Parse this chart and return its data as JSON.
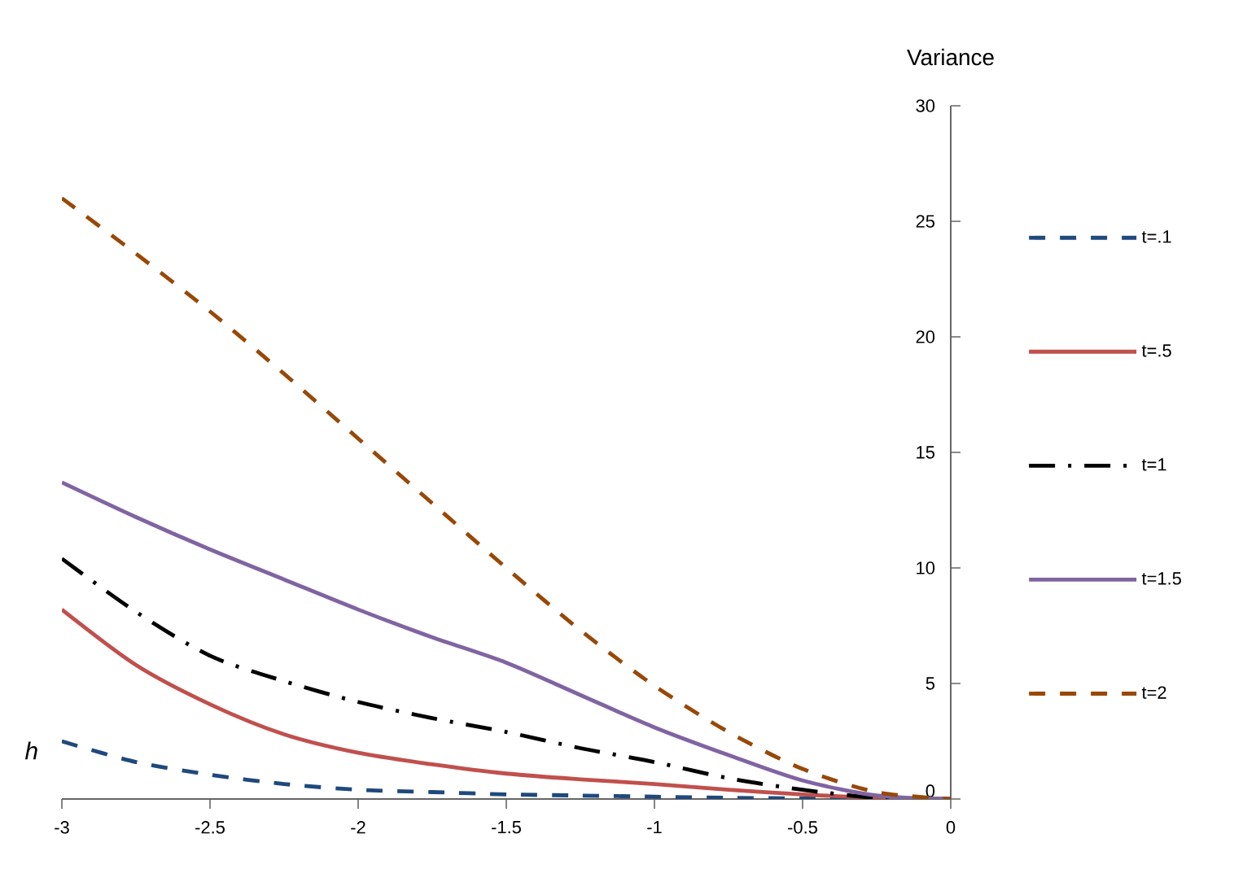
{
  "chart_data": {
    "type": "line",
    "xlabel": "h",
    "ylabel": "Variance",
    "x": [
      -3,
      -2.75,
      -2.5,
      -2.25,
      -2,
      -1.75,
      -1.5,
      -1.25,
      -1,
      -0.75,
      -0.5,
      -0.25,
      0
    ],
    "series": [
      {
        "name": "t=.1",
        "color": "#1f497d",
        "line_style": "dashed",
        "values": [
          2.5,
          1.6,
          1.05,
          0.65,
          0.4,
          0.3,
          0.2,
          0.15,
          0.1,
          0.05,
          0.03,
          0.01,
          0
        ]
      },
      {
        "name": "t=.5",
        "color": "#c0504d",
        "line_style": "solid",
        "values": [
          8.2,
          5.8,
          4.1,
          2.8,
          2.0,
          1.5,
          1.1,
          0.85,
          0.65,
          0.4,
          0.2,
          0.05,
          0
        ]
      },
      {
        "name": "t=1",
        "color": "#000000",
        "line_style": "dashdot",
        "values": [
          10.4,
          8.1,
          6.2,
          5.1,
          4.2,
          3.5,
          2.9,
          2.2,
          1.6,
          0.9,
          0.4,
          0.05,
          0
        ]
      },
      {
        "name": "t=1.5",
        "color": "#8064a2",
        "line_style": "solid",
        "values": [
          13.7,
          12.2,
          10.8,
          9.5,
          8.2,
          7.0,
          5.9,
          4.5,
          3.1,
          1.9,
          0.8,
          0.15,
          0
        ]
      },
      {
        "name": "t=2",
        "color": "#984807",
        "line_style": "dashed",
        "values": [
          26,
          23.6,
          21.1,
          18.4,
          15.6,
          12.8,
          10.0,
          7.3,
          4.9,
          2.9,
          1.3,
          0.3,
          0
        ]
      }
    ],
    "xlim": [
      -3,
      0
    ],
    "ylim": [
      0,
      30
    ],
    "xticks": [
      -3,
      -2.5,
      -2,
      -1.5,
      -1,
      -0.5,
      0
    ],
    "yticks": [
      0,
      5,
      10,
      15,
      20,
      25,
      30
    ],
    "grid": false,
    "legend": "right",
    "marker": "none"
  }
}
